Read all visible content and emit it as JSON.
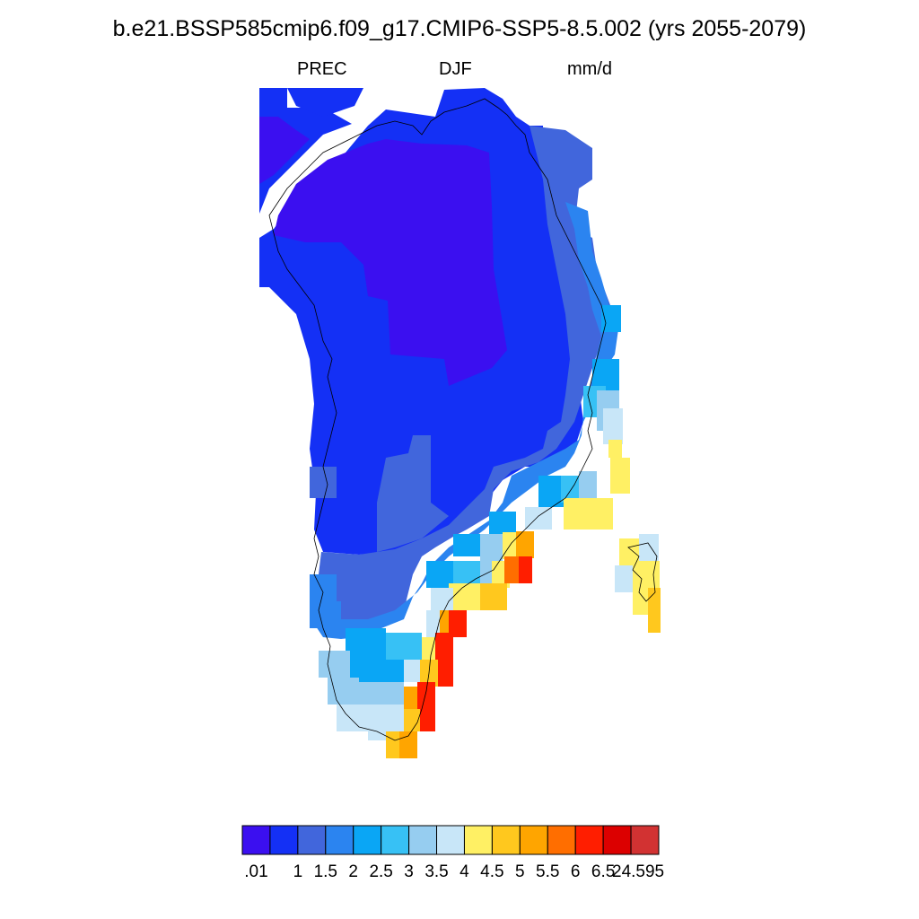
{
  "title": "b.e21.BSSP585cmip6.f09_g17.CMIP6-SSP5-8.5.002 (yrs 2055-2079)",
  "subtitle": {
    "variable": "PREC",
    "season": "DJF",
    "units": "mm/d"
  },
  "colorbar": {
    "colors": [
      "#3b0ff0",
      "#1430f5",
      "#4166dc",
      "#2b84f0",
      "#0aa6f5",
      "#37c1f5",
      "#96cdf0",
      "#c8e6f8",
      "#fff064",
      "#ffc81e",
      "#ffa500",
      "#ff6e00",
      "#ff1e00",
      "#dc0000",
      "#d23232"
    ],
    "labels": [
      ".01",
      "1",
      "1.5",
      "2",
      "2.5",
      "3",
      "3.5",
      "4",
      "4.5",
      "5",
      "5.5",
      "6",
      "6.5",
      "24.595"
    ]
  }
}
